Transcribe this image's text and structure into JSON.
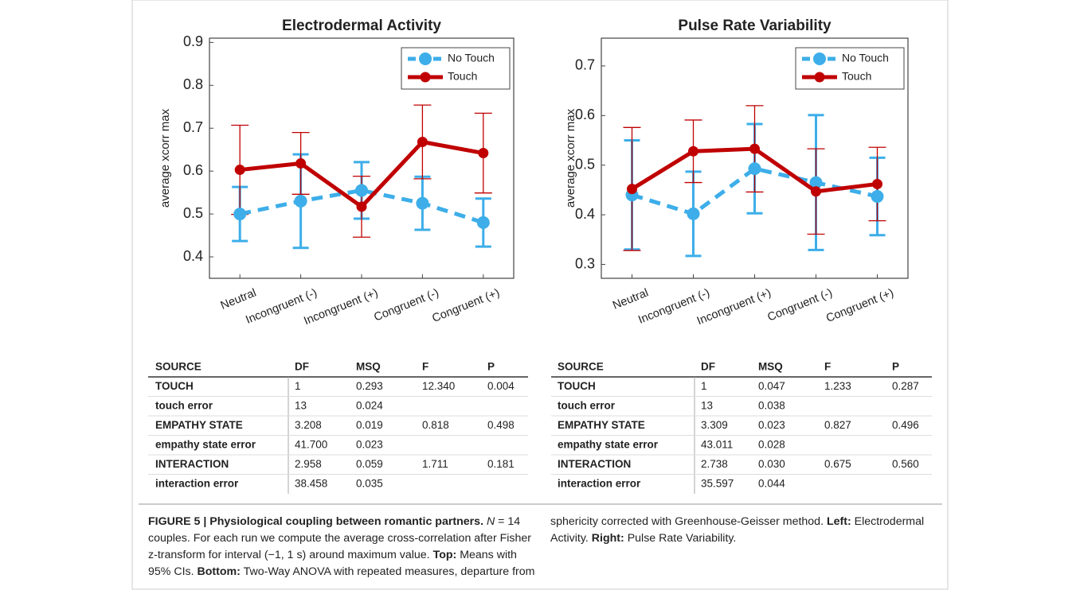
{
  "chart_data": [
    {
      "type": "line",
      "title": "Electrodermal Activity",
      "ylabel": "average xcorr max",
      "categories": [
        "Neutral",
        "Incongruent (-)",
        "Incongruent (+)",
        "Congruent (-)",
        "Congruent (+)"
      ],
      "ylim": [
        0.35,
        0.91
      ],
      "yticks": [
        0.4,
        0.5,
        0.6,
        0.7,
        0.8,
        0.9
      ],
      "legend": "upper right",
      "series": [
        {
          "name": "No Touch",
          "color": "#3daee9",
          "linestyle": "dashed",
          "values": [
            0.5,
            0.53,
            0.555,
            0.525,
            0.48
          ],
          "errors": [
            0.063,
            0.109,
            0.066,
            0.062,
            0.056
          ]
        },
        {
          "name": "Touch",
          "color": "#c00000",
          "linestyle": "solid",
          "values": [
            0.603,
            0.618,
            0.517,
            0.668,
            0.642
          ],
          "errors": [
            0.104,
            0.072,
            0.071,
            0.086,
            0.093
          ]
        }
      ]
    },
    {
      "type": "line",
      "title": "Pulse Rate Variability",
      "ylabel": "average xcorr max",
      "categories": [
        "Neutral",
        "Incongruent (-)",
        "Incongruent (+)",
        "Congruent (-)",
        "Congruent (+)"
      ],
      "ylim": [
        0.272,
        0.756
      ],
      "yticks": [
        0.3,
        0.4,
        0.5,
        0.6,
        0.7
      ],
      "legend": "upper right",
      "series": [
        {
          "name": "No Touch",
          "color": "#3daee9",
          "linestyle": "dashed",
          "values": [
            0.44,
            0.402,
            0.493,
            0.465,
            0.437
          ],
          "errors": [
            0.11,
            0.085,
            0.09,
            0.136,
            0.078
          ]
        },
        {
          "name": "Touch",
          "color": "#c00000",
          "linestyle": "solid",
          "values": [
            0.452,
            0.528,
            0.533,
            0.447,
            0.462
          ],
          "errors": [
            0.124,
            0.063,
            0.087,
            0.086,
            0.074
          ]
        }
      ]
    }
  ],
  "tables": [
    {
      "columns": [
        "SOURCE",
        "DF",
        "MSQ",
        "F",
        "P"
      ],
      "rows": [
        [
          "TOUCH",
          "1",
          "0.293",
          "12.340",
          "0.004"
        ],
        [
          "touch error",
          "13",
          "0.024",
          null,
          null
        ],
        [
          "EMPATHY STATE",
          "3.208",
          "0.019",
          "0.818",
          "0.498"
        ],
        [
          "empathy state error",
          "41.700",
          "0.023",
          null,
          null
        ],
        [
          "INTERACTION",
          "2.958",
          "0.059",
          "1.711",
          "0.181"
        ],
        [
          "interaction error",
          "38.458",
          "0.035",
          null,
          null
        ]
      ]
    },
    {
      "columns": [
        "SOURCE",
        "DF",
        "MSQ",
        "F",
        "P"
      ],
      "rows": [
        [
          "TOUCH",
          "1",
          "0.047",
          "1.233",
          "0.287"
        ],
        [
          "touch error",
          "13",
          "0.038",
          null,
          null
        ],
        [
          "EMPATHY STATE",
          "3.309",
          "0.023",
          "0.827",
          "0.496"
        ],
        [
          "empathy state error",
          "43.011",
          "0.028",
          null,
          null
        ],
        [
          "INTERACTION",
          "2.738",
          "0.030",
          "0.675",
          "0.560"
        ],
        [
          "interaction error",
          "35.597",
          "0.044",
          null,
          null
        ]
      ]
    }
  ],
  "caption": {
    "parts": [
      {
        "text": "FIGURE 5 | Physiological coupling between romantic partners. ",
        "bold": true
      },
      {
        "text": "N",
        "italic": true
      },
      {
        "text": " = 14 couples. For each run we compute the average cross-correlation after Fisher z-transform for interval (−1, 1 s) around maximum value. "
      },
      {
        "text": "Top:",
        "bold": true
      },
      {
        "text": " Means with 95% CIs. "
      },
      {
        "text": "Bottom:",
        "bold": true
      },
      {
        "text": " Two-Way ANOVA with repeated measures, departure from sphericity corrected with Greenhouse-Geisser method. "
      },
      {
        "text": "Left:",
        "bold": true
      },
      {
        "text": " Electrodermal Activity. "
      },
      {
        "text": "Right:",
        "bold": true
      },
      {
        "text": " Pulse Rate Variability."
      }
    ]
  }
}
